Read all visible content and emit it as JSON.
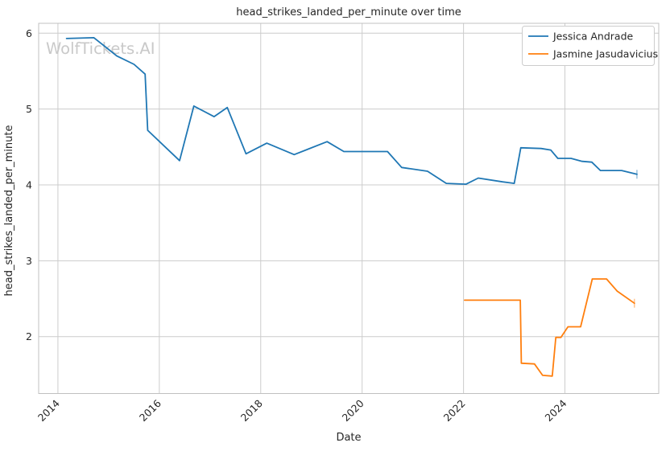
{
  "watermark": {
    "text": "WolfTickets.AI",
    "color": "#c9c9c9"
  },
  "palette": {
    "blue": "#1f77b4",
    "orange": "#ff7f0e",
    "grid": "#cccccc",
    "spine": "#c0c0c0",
    "text": "#262626"
  },
  "legend": {
    "position": "upper right",
    "entries": [
      {
        "label": "Jessica Andrade",
        "color": "#1f77b4"
      },
      {
        "label": "Jasmine Jasudavicius",
        "color": "#ff7f0e"
      }
    ]
  },
  "chart_data": {
    "type": "line",
    "title": "head_strikes_landed_per_minute over time",
    "xlabel": "Date",
    "ylabel": "head_strikes_landed_per_minute",
    "xlim": [
      2013.62,
      2025.85
    ],
    "ylim": [
      1.25,
      6.13
    ],
    "x_ticks": [
      2014,
      2016,
      2018,
      2020,
      2022,
      2024
    ],
    "y_ticks": [
      2,
      3,
      4,
      5,
      6
    ],
    "grid": true,
    "legend_position": "upper right",
    "series": [
      {
        "name": "Jessica Andrade",
        "color": "#1f77b4",
        "points": [
          [
            2014.17,
            5.93
          ],
          [
            2014.71,
            5.94
          ],
          [
            2015.16,
            5.7
          ],
          [
            2015.5,
            5.59
          ],
          [
            2015.72,
            5.46
          ],
          [
            2015.77,
            4.72
          ],
          [
            2016.4,
            4.32
          ],
          [
            2016.68,
            5.04
          ],
          [
            2017.08,
            4.9
          ],
          [
            2017.34,
            5.02
          ],
          [
            2017.71,
            4.41
          ],
          [
            2018.12,
            4.55
          ],
          [
            2018.66,
            4.4
          ],
          [
            2019.31,
            4.57
          ],
          [
            2019.64,
            4.44
          ],
          [
            2020.5,
            4.44
          ],
          [
            2020.78,
            4.23
          ],
          [
            2021.29,
            4.18
          ],
          [
            2021.66,
            4.02
          ],
          [
            2022.05,
            4.01
          ],
          [
            2022.29,
            4.09
          ],
          [
            2022.77,
            4.04
          ],
          [
            2023.0,
            4.02
          ],
          [
            2023.13,
            4.49
          ],
          [
            2023.53,
            4.48
          ],
          [
            2023.72,
            4.46
          ],
          [
            2023.86,
            4.35
          ],
          [
            2024.12,
            4.35
          ],
          [
            2024.34,
            4.31
          ],
          [
            2024.53,
            4.3
          ],
          [
            2024.7,
            4.19
          ],
          [
            2025.12,
            4.19
          ],
          [
            2025.42,
            4.14
          ]
        ]
      },
      {
        "name": "Jasmine Jasudavicius",
        "color": "#ff7f0e",
        "points": [
          [
            2022.02,
            2.48
          ],
          [
            2023.12,
            2.48
          ],
          [
            2023.14,
            1.65
          ],
          [
            2023.4,
            1.64
          ],
          [
            2023.56,
            1.49
          ],
          [
            2023.75,
            1.48
          ],
          [
            2023.82,
            1.99
          ],
          [
            2023.92,
            1.99
          ],
          [
            2024.06,
            2.13
          ],
          [
            2024.31,
            2.13
          ],
          [
            2024.54,
            2.76
          ],
          [
            2024.82,
            2.76
          ],
          [
            2025.03,
            2.6
          ],
          [
            2025.37,
            2.44
          ]
        ]
      }
    ]
  }
}
